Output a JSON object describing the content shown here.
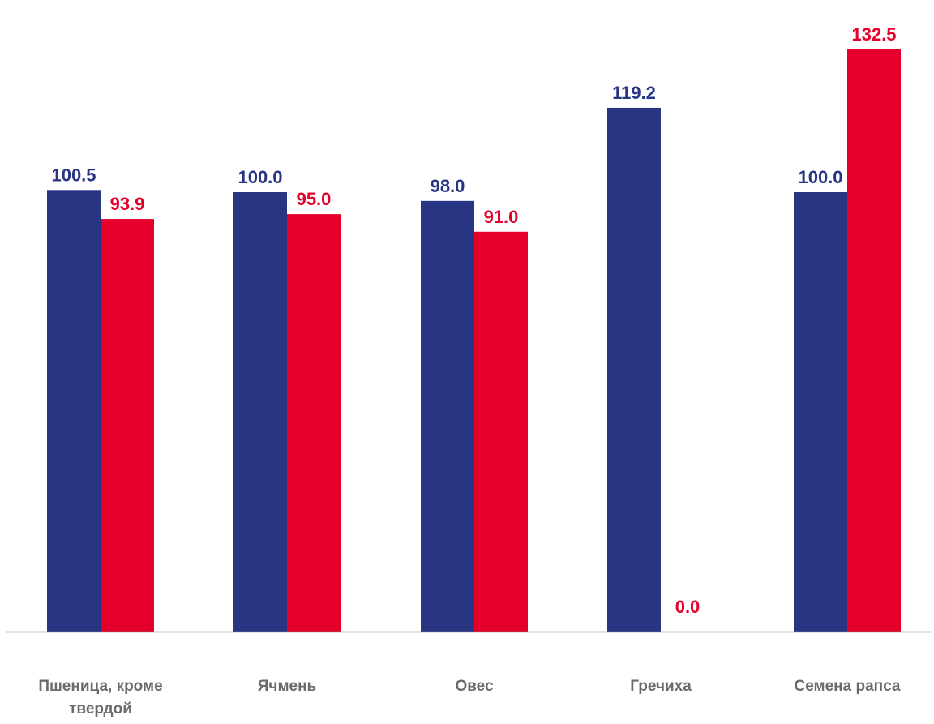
{
  "chart_data": {
    "type": "bar",
    "categories": [
      [
        "Пшеница, кроме",
        "твердой"
      ],
      [
        "Ячмень"
      ],
      [
        "Овес"
      ],
      [
        "Гречиха"
      ],
      [
        "Семена рапса"
      ]
    ],
    "series": [
      {
        "values": [
          100.5,
          100.0,
          98.0,
          119.2,
          100.0
        ],
        "labels": [
          "100.5",
          "100.0",
          "98.0",
          "119.2",
          "100.0"
        ],
        "color": "#283583"
      },
      {
        "values": [
          93.9,
          95.0,
          91.0,
          0.0,
          132.5
        ],
        "labels": [
          "93.9",
          "95.0",
          "91.0",
          "0.0",
          "132.5"
        ],
        "color": "#e4002b"
      }
    ],
    "ylim": [
      0,
      138
    ],
    "grid": false,
    "legend": "none",
    "axis_color": "#8c8c8c",
    "category_label_color": "#6b6b6b"
  }
}
